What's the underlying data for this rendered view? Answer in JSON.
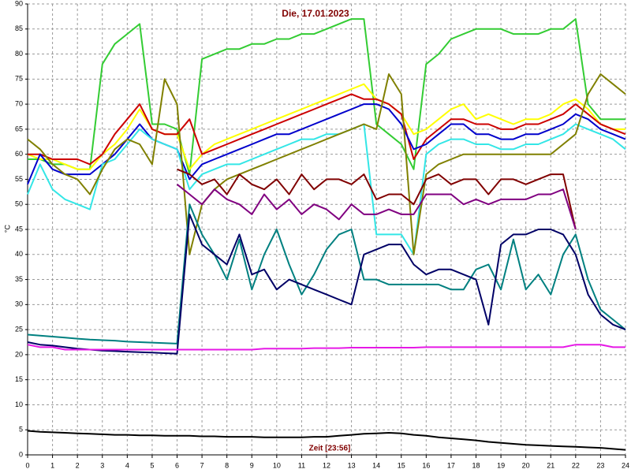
{
  "chart_data": {
    "type": "line",
    "title": "Die, 17.01.2023",
    "y_label": "°C",
    "x_label": "Zeit [23:56]",
    "grid": true,
    "xlim": [
      0,
      24
    ],
    "ylim": [
      0,
      90
    ],
    "xticks": [
      0,
      1,
      2,
      3,
      4,
      5,
      6,
      7,
      8,
      9,
      10,
      11,
      12,
      13,
      14,
      15,
      16,
      17,
      18,
      19,
      20,
      21,
      22,
      23,
      24
    ],
    "yticks": [
      0,
      5,
      10,
      15,
      20,
      25,
      30,
      35,
      40,
      45,
      50,
      55,
      60,
      65,
      70,
      75,
      80,
      85,
      90
    ],
    "x": [
      0,
      0.5,
      1,
      1.5,
      2,
      2.5,
      3,
      3.5,
      4,
      4.5,
      5,
      5.5,
      6,
      6.5,
      7,
      7.5,
      8,
      8.5,
      9,
      9.5,
      10,
      10.5,
      11,
      11.5,
      12,
      12.5,
      13,
      13.5,
      14,
      14.5,
      15,
      15.5,
      16,
      16.5,
      17,
      17.5,
      18,
      18.5,
      19,
      19.5,
      20,
      20.5,
      21,
      21.5,
      22,
      22.5,
      23,
      23.5,
      24
    ],
    "series": [
      {
        "color": "#33cc33",
        "values": [
          59,
          59,
          58,
          58,
          57,
          57,
          78,
          82,
          84,
          86,
          66,
          66,
          65,
          56,
          79,
          80,
          81,
          81,
          82,
          82,
          83,
          83,
          84,
          84,
          85,
          86,
          87,
          87,
          66,
          64,
          62,
          57,
          78,
          80,
          83,
          84,
          85,
          85,
          85,
          84,
          84,
          84,
          85,
          85,
          87,
          70,
          67,
          67,
          67
        ]
      },
      {
        "color": "#ffff00",
        "values": [
          60,
          59,
          59,
          58,
          57,
          57,
          60,
          62,
          65,
          69,
          65,
          64,
          64,
          57,
          60,
          62,
          63,
          64,
          65,
          66,
          67,
          68,
          69,
          70,
          71,
          72,
          73,
          74,
          71,
          70,
          68,
          64,
          65,
          67,
          69,
          70,
          67,
          68,
          67,
          66,
          67,
          67,
          68,
          70,
          71,
          69,
          66,
          65,
          65
        ]
      },
      {
        "color": "#cc0000",
        "values": [
          60,
          60,
          59,
          59,
          59,
          58,
          60,
          64,
          67,
          70,
          65,
          64,
          64,
          67,
          60,
          61,
          62,
          63,
          64,
          65,
          66,
          67,
          68,
          69,
          70,
          71,
          72,
          71,
          71,
          70,
          68,
          59,
          63,
          65,
          67,
          67,
          66,
          66,
          65,
          65,
          66,
          66,
          67,
          68,
          70,
          68,
          66,
          65,
          64
        ]
      },
      {
        "color": "#0000cc",
        "values": [
          54,
          60,
          57,
          56,
          56,
          56,
          58,
          60,
          63,
          66,
          63,
          62,
          61,
          55,
          58,
          59,
          60,
          61,
          62,
          63,
          64,
          64,
          65,
          66,
          67,
          68,
          69,
          70,
          70,
          69,
          66,
          61,
          62,
          64,
          66,
          66,
          64,
          64,
          63,
          63,
          64,
          64,
          65,
          66,
          68,
          67,
          65,
          64,
          63
        ]
      },
      {
        "color": "#33e6e6",
        "values": [
          52,
          58,
          53,
          51,
          50,
          49,
          58,
          59,
          62,
          65,
          63,
          62,
          61,
          53,
          56,
          57,
          58,
          58,
          59,
          60,
          61,
          62,
          63,
          63,
          64,
          64,
          65,
          66,
          44,
          44,
          44,
          40,
          60,
          62,
          63,
          63,
          62,
          62,
          61,
          61,
          62,
          62,
          63,
          64,
          66,
          65,
          64,
          63,
          61
        ]
      },
      {
        "color": "#808000",
        "values": [
          63,
          61,
          58,
          56,
          55,
          52,
          57,
          61,
          63,
          62,
          58,
          75,
          70,
          40,
          50,
          53,
          55,
          56,
          57,
          58,
          59,
          60,
          61,
          62,
          63,
          64,
          65,
          66,
          65,
          76,
          72,
          40,
          56,
          58,
          59,
          60,
          60,
          60,
          60,
          60,
          60,
          60,
          60,
          62,
          64,
          72,
          76,
          74,
          72
        ]
      },
      {
        "color": "#800000",
        "values": [
          null,
          null,
          null,
          null,
          null,
          null,
          null,
          null,
          null,
          null,
          null,
          null,
          57,
          56,
          54,
          55,
          52,
          56,
          54,
          53,
          55,
          52,
          56,
          53,
          55,
          55,
          54,
          56,
          51,
          52,
          52,
          50,
          55,
          56,
          54,
          55,
          55,
          52,
          55,
          55,
          54,
          55,
          56,
          56,
          45,
          null,
          null,
          null,
          null
        ]
      },
      {
        "color": "#800080",
        "values": [
          null,
          null,
          null,
          null,
          null,
          null,
          null,
          null,
          null,
          null,
          null,
          null,
          54,
          52,
          50,
          53,
          51,
          50,
          48,
          52,
          49,
          51,
          48,
          50,
          49,
          47,
          50,
          48,
          48,
          49,
          48,
          48,
          52,
          52,
          52,
          50,
          51,
          50,
          51,
          51,
          51,
          52,
          52,
          53,
          45,
          null,
          null,
          null,
          null
        ]
      },
      {
        "color": "#008080",
        "values": [
          24,
          23.8,
          23.6,
          23.4,
          23.2,
          23,
          22.9,
          22.8,
          22.6,
          22.5,
          22.4,
          22.3,
          22.2,
          50,
          44,
          40,
          35,
          43,
          33,
          40,
          45,
          38,
          32,
          36,
          41,
          44,
          45,
          35,
          35,
          34,
          34,
          34,
          34,
          34,
          33,
          33,
          37,
          38,
          33,
          43,
          33,
          36,
          32,
          40,
          44,
          35,
          29,
          27,
          25
        ]
      },
      {
        "color": "#000066",
        "values": [
          22.5,
          22,
          21.8,
          21.5,
          21.2,
          21,
          20.8,
          20.7,
          20.6,
          20.5,
          20.4,
          20.3,
          20.2,
          48,
          42,
          40,
          38,
          44,
          36,
          37,
          33,
          35,
          34,
          33,
          32,
          31,
          30,
          40,
          41,
          42,
          42,
          38,
          36,
          37,
          37,
          36,
          35,
          26,
          42,
          44,
          44,
          45,
          45,
          44,
          40,
          32,
          28,
          26,
          25
        ]
      },
      {
        "color": "#e619e6",
        "values": [
          22,
          21.5,
          21.5,
          21,
          21,
          21,
          21,
          21,
          21,
          21,
          21,
          21,
          21,
          21,
          21,
          21,
          21,
          21,
          21,
          21.2,
          21.2,
          21.2,
          21.2,
          21.3,
          21.3,
          21.3,
          21.4,
          21.4,
          21.4,
          21.4,
          21.4,
          21.4,
          21.5,
          21.5,
          21.5,
          21.5,
          21.5,
          21.5,
          21.5,
          21.5,
          21.5,
          21.5,
          21.5,
          21.5,
          22,
          22,
          22,
          21.5,
          21.5
        ]
      },
      {
        "color": "#000000",
        "values": [
          4.8,
          4.6,
          4.5,
          4.4,
          4.3,
          4.2,
          4.1,
          4,
          4,
          3.9,
          3.9,
          3.8,
          3.8,
          3.8,
          3.7,
          3.7,
          3.6,
          3.6,
          3.6,
          3.5,
          3.5,
          3.5,
          3.5,
          3.6,
          3.6,
          3.8,
          4,
          4.2,
          4.3,
          4.4,
          4.3,
          4,
          3.8,
          3.5,
          3.3,
          3.1,
          2.9,
          2.6,
          2.4,
          2.2,
          2,
          1.9,
          1.8,
          1.7,
          1.6,
          1.5,
          1.4,
          1.2,
          1
        ]
      }
    ]
  }
}
